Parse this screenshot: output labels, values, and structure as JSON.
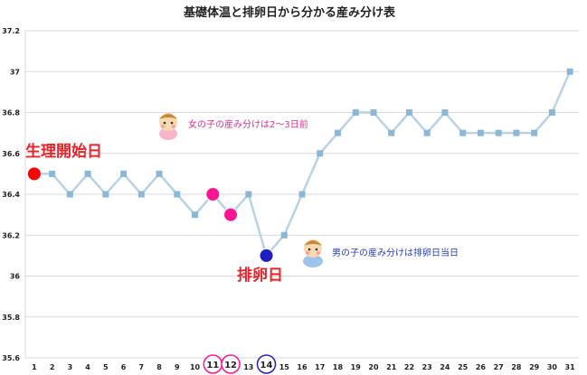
{
  "chart_data": {
    "type": "line",
    "title": "基礎体温と排卵日から分かる産み分け表",
    "xlabel": "",
    "ylabel": "",
    "categories": [
      "1",
      "2",
      "3",
      "4",
      "5",
      "6",
      "7",
      "8",
      "9",
      "10",
      "11",
      "12",
      "13",
      "14",
      "15",
      "16",
      "17",
      "18",
      "19",
      "20",
      "21",
      "22",
      "23",
      "24",
      "25",
      "26",
      "27",
      "28",
      "29",
      "30",
      "31"
    ],
    "series": [
      {
        "values": [
          36.5,
          36.5,
          36.4,
          36.5,
          36.4,
          36.5,
          36.4,
          36.5,
          36.4,
          36.3,
          36.4,
          36.3,
          36.4,
          36.1,
          36.2,
          36.4,
          36.6,
          36.7,
          36.8,
          36.8,
          36.7,
          36.8,
          36.7,
          36.8,
          36.7,
          36.7,
          36.7,
          36.7,
          36.7,
          36.8,
          37.0
        ]
      }
    ],
    "ylim": [
      35.6,
      37.2
    ],
    "yticks": [
      "35.6",
      "35.8",
      "36",
      "36.2",
      "36.4",
      "36.6",
      "36.8",
      "37",
      "37.2"
    ],
    "grid": true,
    "line_color": "#b9d3e6",
    "marker_color": "#8ab8d6",
    "highlights": [
      {
        "day": 1,
        "color": "#ff0000"
      },
      {
        "day": 11,
        "color": "#ff1493"
      },
      {
        "day": 12,
        "color": "#ff1493"
      },
      {
        "day": 14,
        "color": "#2020c0"
      }
    ],
    "circled_days": [
      {
        "label": "11",
        "color": "#ff1493"
      },
      {
        "label": "12",
        "color": "#ff1493"
      },
      {
        "label": "14",
        "color": "#2020c0"
      }
    ],
    "annotations": {
      "period_start": "生理開始日",
      "ovulation": "排卵日",
      "girl": "女の子の産み分けは2～3日前",
      "boy": "男の子の産み分けは排卵日当日"
    }
  }
}
